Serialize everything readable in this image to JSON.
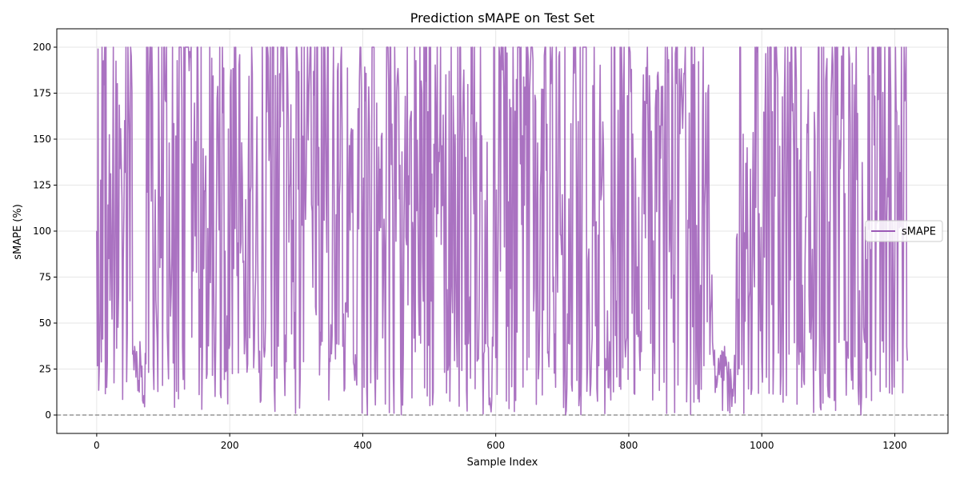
{
  "chart_data": {
    "type": "line",
    "title": "Prediction sMAPE on Test Set",
    "xlabel": "Sample Index",
    "ylabel": "sMAPE (%)",
    "xlim": [
      -60,
      1280
    ],
    "ylim": [
      -10,
      210
    ],
    "xticks": [
      0,
      200,
      400,
      600,
      800,
      1000,
      1200
    ],
    "xtick_labels": [
      "0",
      "200",
      "400",
      "600",
      "800",
      "1000",
      "1200"
    ],
    "yticks": [
      0,
      25,
      50,
      75,
      100,
      125,
      150,
      175,
      200
    ],
    "ytick_labels": [
      "0",
      "25",
      "50",
      "75",
      "100",
      "125",
      "150",
      "175",
      "200"
    ],
    "grid": true,
    "legend_position": "center-right",
    "reference_line": {
      "y": 0,
      "style": "dashed",
      "color": "#808080"
    },
    "series": [
      {
        "name": "sMAPE",
        "color": "#9b59b6",
        "opacity": 0.85,
        "x_start": 0,
        "x_step": 1,
        "y_min": 0,
        "y_max": 200,
        "count": 1220,
        "values": []
      }
    ]
  }
}
